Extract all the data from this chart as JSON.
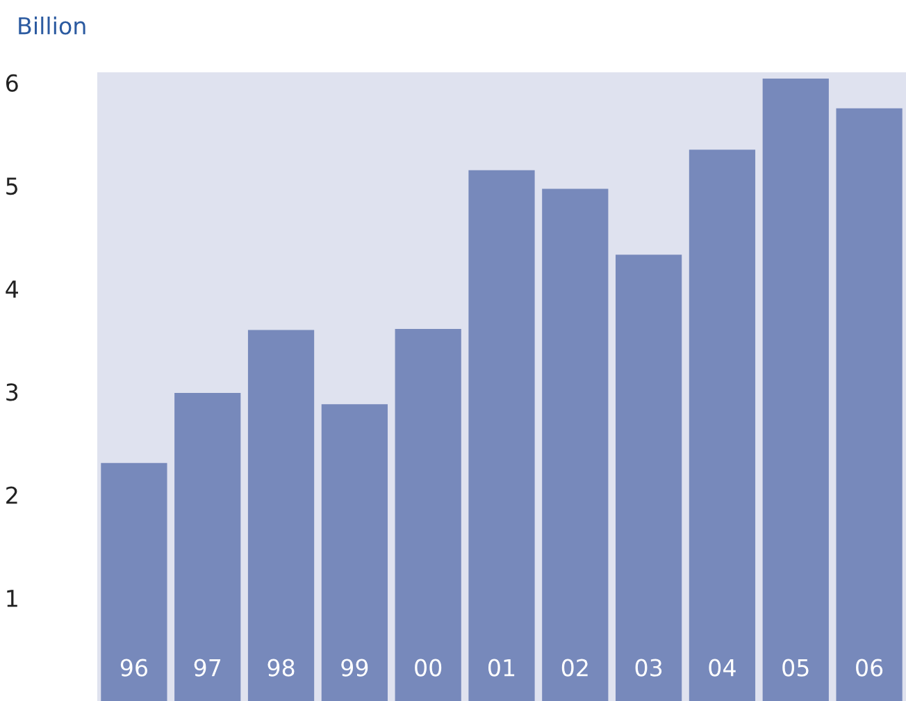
{
  "chart_data": {
    "type": "bar",
    "ylabel": "Billion",
    "categories": [
      "96",
      "97",
      "98",
      "99",
      "00",
      "01",
      "02",
      "03",
      "04",
      "05",
      "06"
    ],
    "values": [
      2.31,
      2.99,
      3.6,
      2.88,
      3.61,
      5.15,
      4.97,
      4.33,
      5.35,
      6.04,
      5.75
    ],
    "color": "#7789bb",
    "ylim": [
      0,
      6.1
    ],
    "yticks": [
      1,
      2,
      3,
      4,
      5,
      6
    ],
    "grid": false,
    "legend": false
  }
}
